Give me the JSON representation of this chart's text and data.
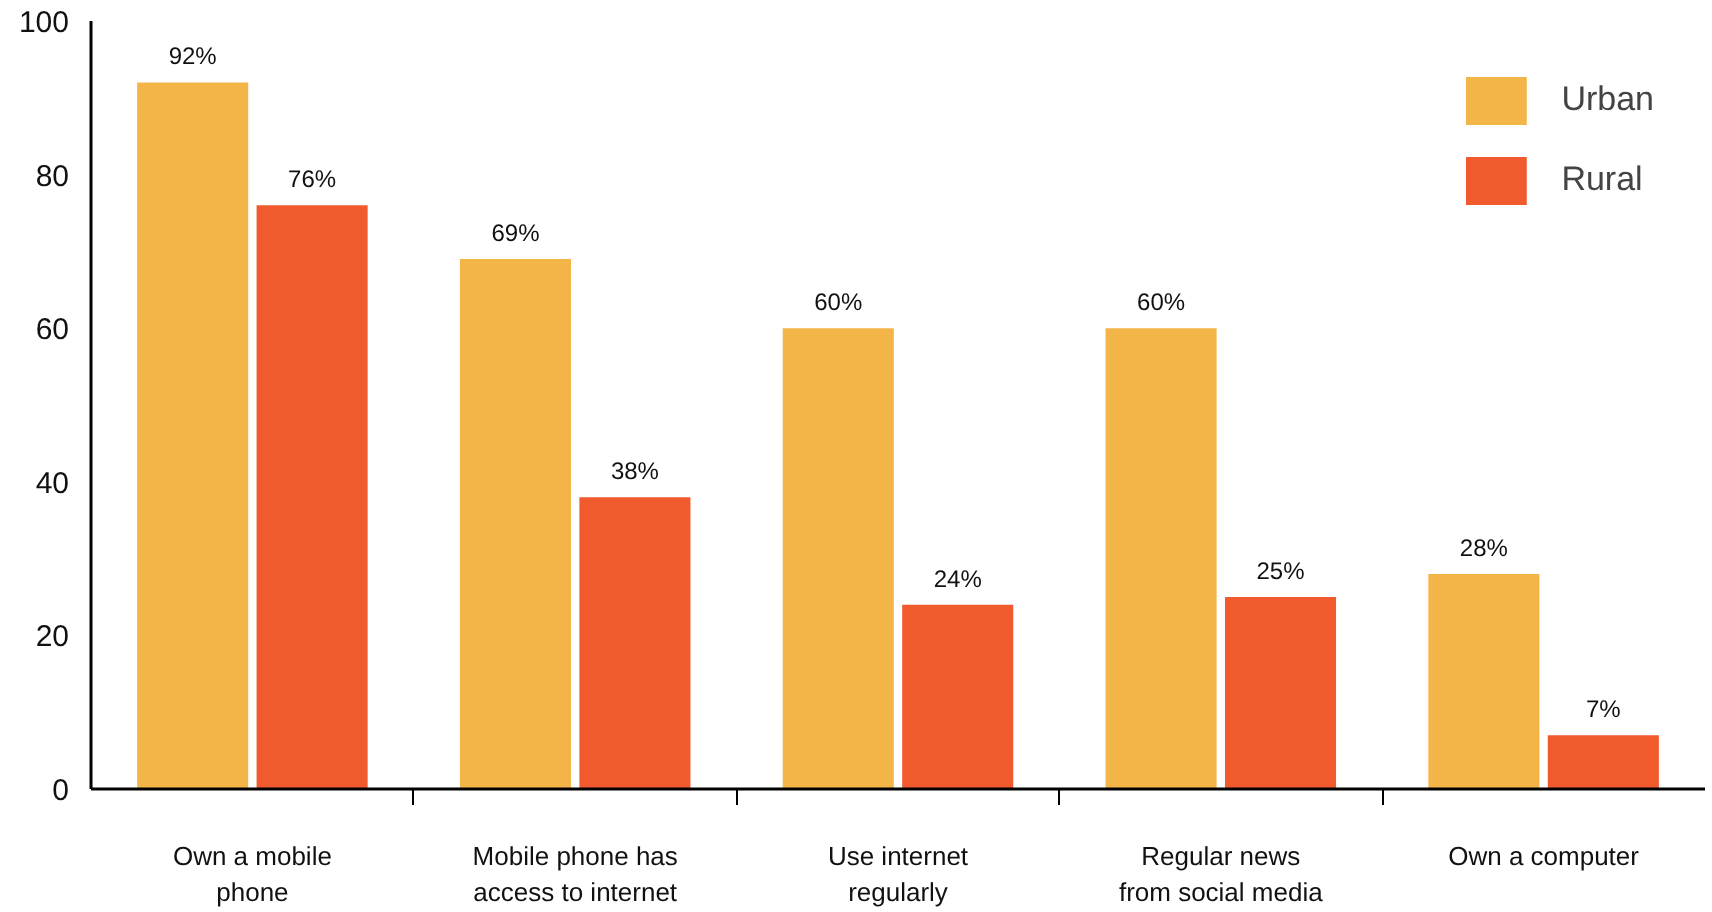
{
  "chart_data": {
    "type": "bar",
    "categories": [
      "Own a mobile\nphone",
      "Mobile phone has\naccess to internet",
      "Use internet\nregularly",
      "Regular news\nfrom social media",
      "Own a computer"
    ],
    "series": [
      {
        "name": "Urban",
        "color": "#f4b548",
        "values": [
          92,
          69,
          60,
          60,
          28
        ],
        "value_labels": [
          "92%",
          "69%",
          "60%",
          "60%",
          "28%"
        ]
      },
      {
        "name": "Rural",
        "color": "#f05a2c",
        "values": [
          76,
          38,
          24,
          25,
          7
        ],
        "value_labels": [
          "76%",
          "38%",
          "24%",
          "25%",
          "7%"
        ]
      }
    ],
    "ylim": [
      0,
      100
    ],
    "yticks": [
      0,
      20,
      40,
      60,
      80,
      100
    ],
    "grid": false,
    "legend": "top right"
  }
}
